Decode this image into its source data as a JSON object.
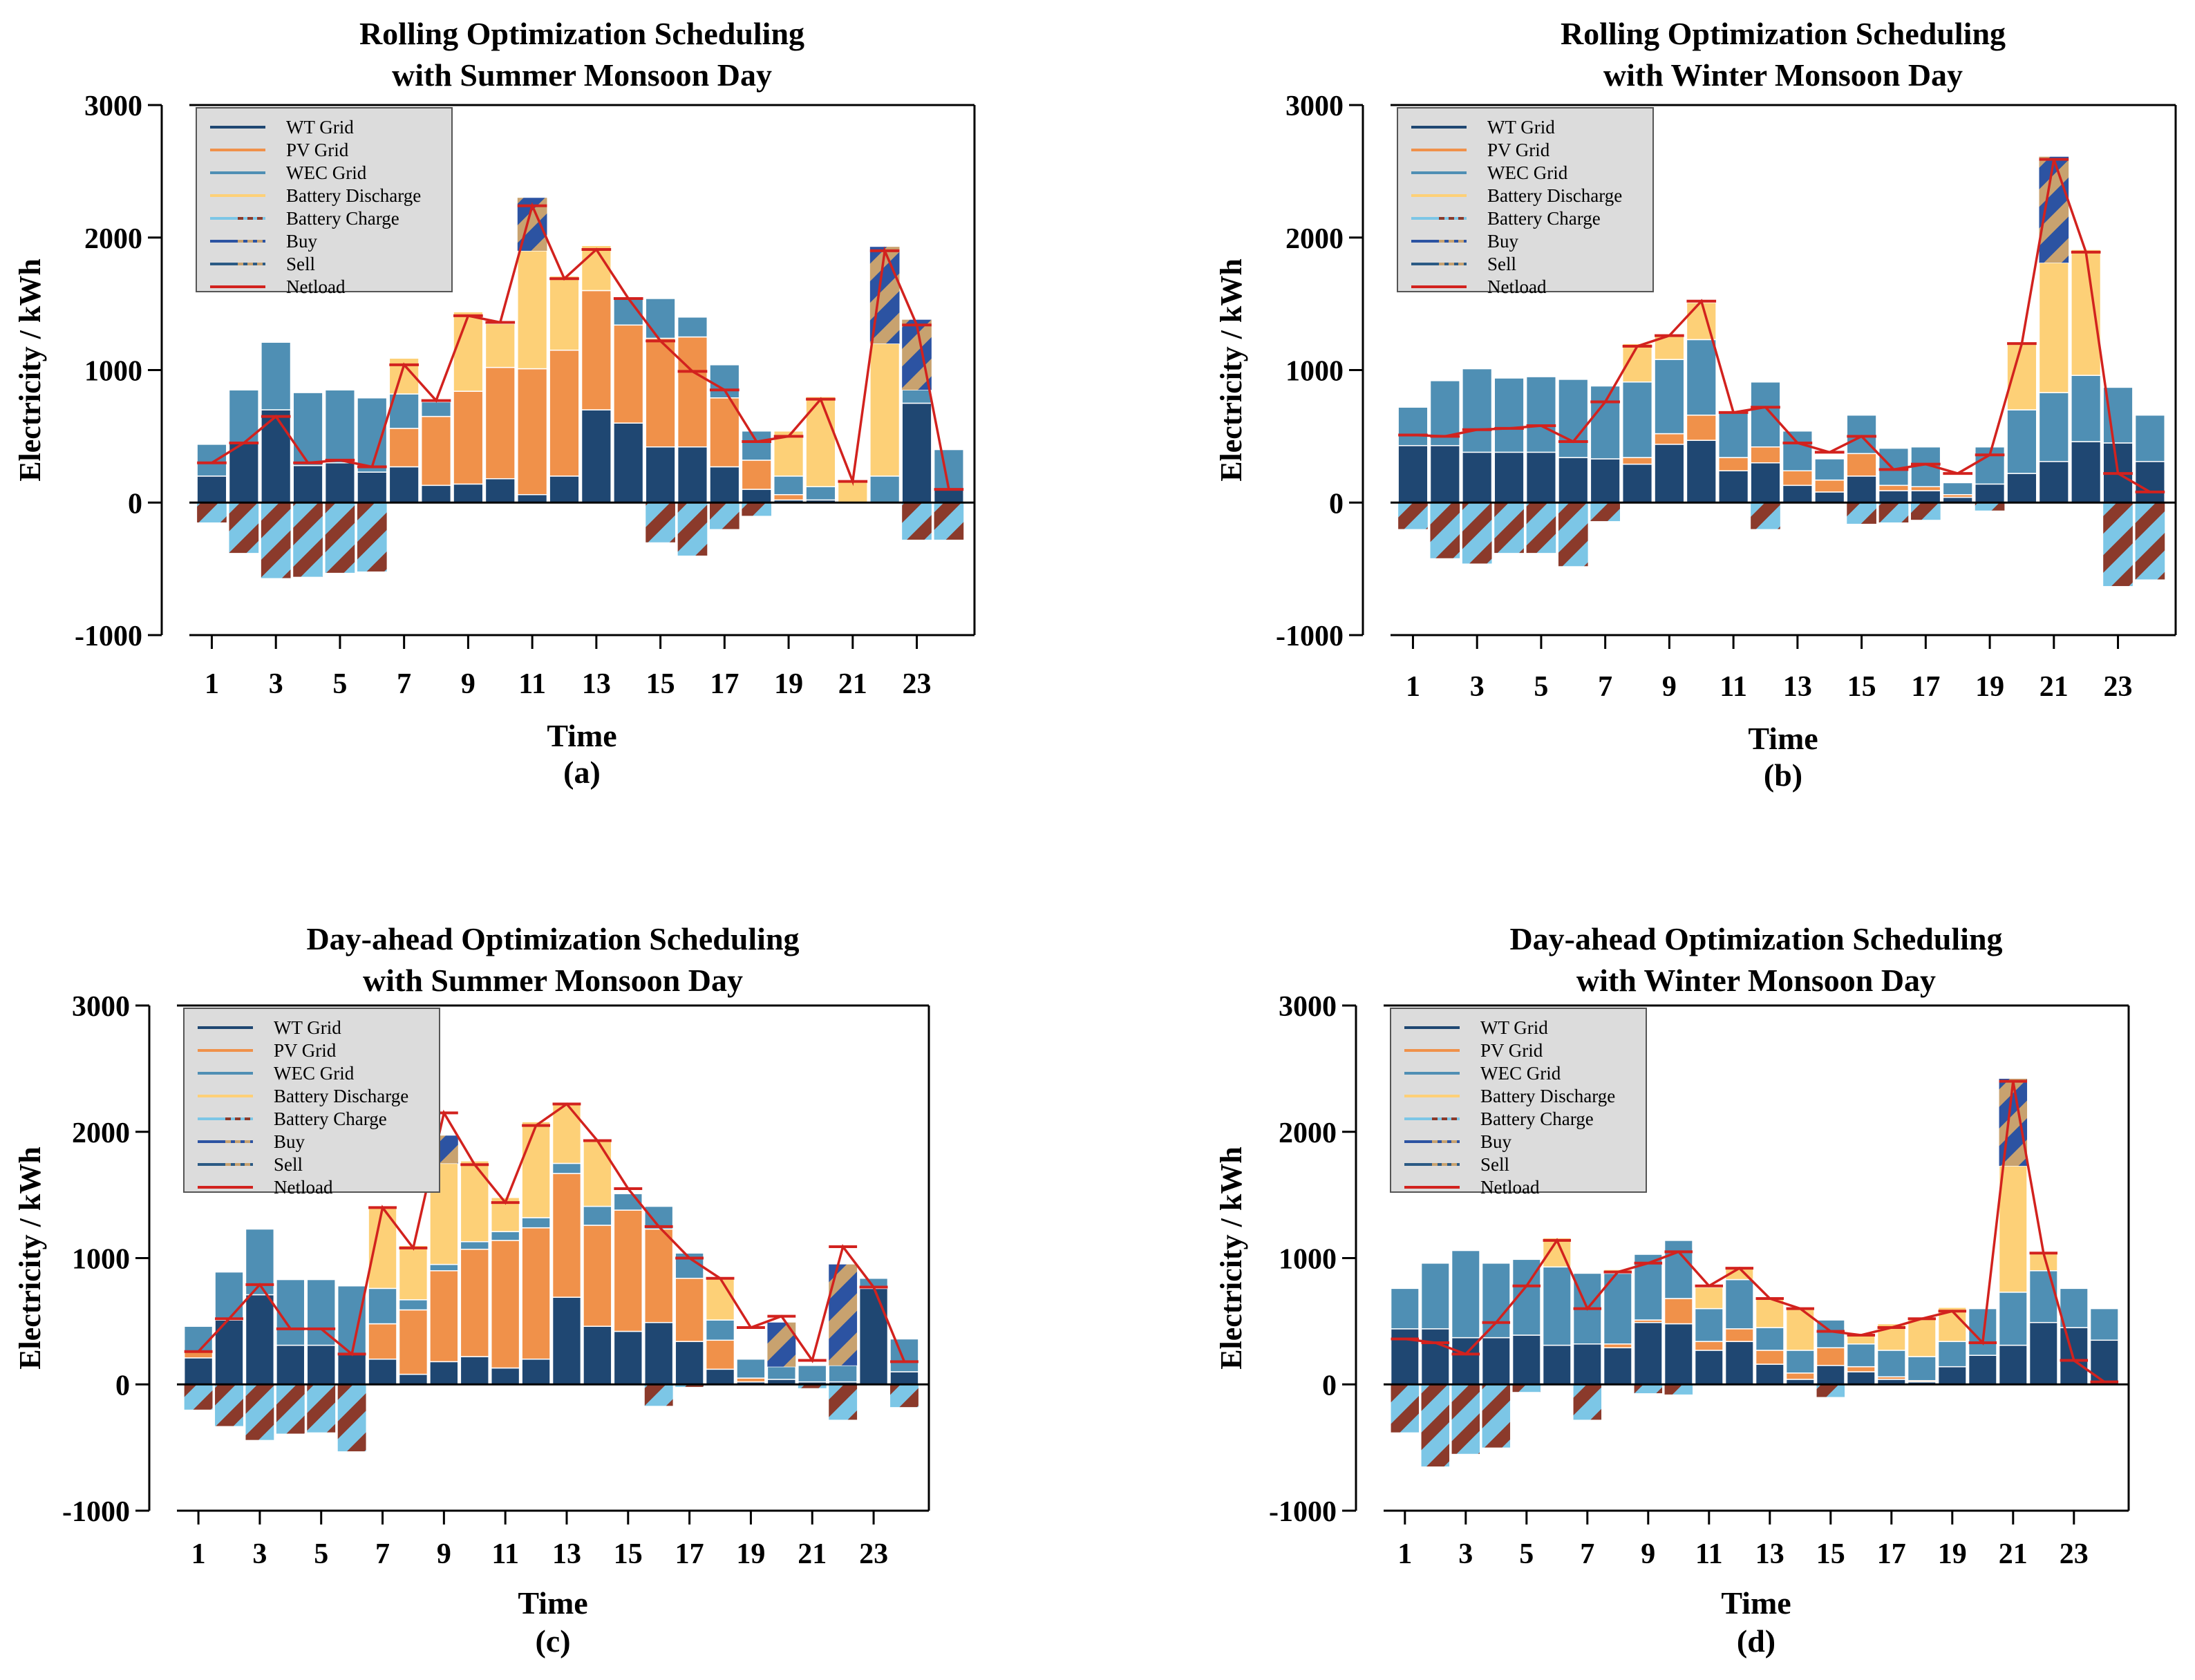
{
  "colors": {
    "wt": "#1f4772",
    "pv": "#f0914a",
    "wec": "#4f8fb4",
    "discharge": "#fdd077",
    "charge": "#7cc6e6",
    "buy": "#2c53a2",
    "sell": "#2b5a84",
    "netload": "#d2221e",
    "stripe": "#c8a26f",
    "sellStripe": "#8b3a2b"
  },
  "legend_labels": [
    "WT Grid",
    "PV Grid",
    "WEC Grid",
    "Battery Discharge",
    "Battery Charge",
    "Buy",
    "Sell",
    "Netload"
  ],
  "chart_data": [
    {
      "id": "a",
      "type": "bar",
      "stacked": true,
      "title": [
        "Rolling Optimization Scheduling",
        "with Summer Monsoon Day"
      ],
      "xlabel": "Time",
      "ylabel": "Electricity / kWh",
      "caption": "(a)",
      "ylim": [
        -1000,
        3000
      ],
      "yticks": [
        3000,
        2000,
        1000,
        0,
        -1000
      ],
      "x": [
        1,
        2,
        3,
        4,
        5,
        6,
        7,
        8,
        9,
        10,
        11,
        12,
        13,
        14,
        15,
        16,
        17,
        18,
        19,
        20,
        21,
        22,
        23,
        24
      ],
      "xticks": [
        1,
        3,
        5,
        7,
        9,
        11,
        13,
        15,
        17,
        19,
        21,
        23
      ],
      "legend_position": "top-left",
      "series": [
        {
          "name": "WT Grid",
          "key": "wt",
          "values": [
            200,
            450,
            700,
            280,
            300,
            230,
            270,
            130,
            140,
            180,
            60,
            200,
            700,
            600,
            420,
            420,
            270,
            100,
            20,
            20,
            0,
            0,
            750,
            100
          ]
        },
        {
          "name": "PV Grid",
          "key": "pv",
          "values": [
            0,
            0,
            0,
            0,
            0,
            0,
            290,
            520,
            700,
            840,
            950,
            950,
            900,
            740,
            820,
            830,
            520,
            220,
            40,
            0,
            0,
            0,
            0,
            0
          ]
        },
        {
          "name": "WEC Grid",
          "key": "wec",
          "values": [
            240,
            400,
            510,
            550,
            550,
            560,
            260,
            110,
            0,
            0,
            0,
            0,
            0,
            210,
            300,
            150,
            250,
            220,
            140,
            100,
            0,
            200,
            100,
            300
          ]
        },
        {
          "name": "Battery Discharge",
          "key": "discharge",
          "values": [
            0,
            0,
            0,
            0,
            0,
            0,
            270,
            0,
            600,
            330,
            890,
            560,
            340,
            0,
            0,
            0,
            0,
            0,
            340,
            680,
            170,
            1000,
            0,
            0
          ]
        },
        {
          "name": "Battery Charge",
          "key": "charge",
          "values": [
            -150,
            -380,
            -570,
            -560,
            -530,
            -520,
            0,
            0,
            0,
            0,
            0,
            0,
            0,
            0,
            -300,
            -400,
            -200,
            -100,
            0,
            0,
            0,
            0,
            -280,
            -280
          ]
        },
        {
          "name": "Buy",
          "key": "buy",
          "values": [
            0,
            0,
            0,
            0,
            0,
            0,
            0,
            0,
            0,
            0,
            400,
            0,
            0,
            0,
            0,
            0,
            0,
            0,
            0,
            0,
            0,
            730,
            530,
            0
          ]
        },
        {
          "name": "Sell",
          "key": "sell",
          "values": [
            0,
            0,
            0,
            0,
            0,
            0,
            0,
            0,
            0,
            0,
            0,
            0,
            0,
            0,
            0,
            0,
            0,
            0,
            0,
            0,
            0,
            0,
            0,
            0
          ]
        }
      ],
      "netload": [
        300,
        450,
        650,
        300,
        320,
        270,
        1040,
        770,
        1410,
        1360,
        2240,
        1690,
        1910,
        1540,
        1220,
        990,
        850,
        460,
        500,
        780,
        160,
        1900,
        1340,
        100
      ]
    },
    {
      "id": "b",
      "type": "bar",
      "stacked": true,
      "title": [
        "Rolling Optimization Scheduling",
        "with Winter Monsoon Day"
      ],
      "xlabel": "Time",
      "ylabel": "Electricity / kWh",
      "caption": "(b)",
      "ylim": [
        -1000,
        3000
      ],
      "yticks": [
        3000,
        2000,
        1000,
        0,
        -1000
      ],
      "x": [
        1,
        2,
        3,
        4,
        5,
        6,
        7,
        8,
        9,
        10,
        11,
        12,
        13,
        14,
        15,
        16,
        17,
        18,
        19,
        20,
        21,
        22,
        23,
        24
      ],
      "xticks": [
        1,
        3,
        5,
        7,
        9,
        11,
        13,
        15,
        17,
        19,
        21,
        23
      ],
      "legend_position": "top-left",
      "series": [
        {
          "name": "WT Grid",
          "key": "wt",
          "values": [
            430,
            430,
            380,
            380,
            380,
            340,
            330,
            290,
            440,
            470,
            240,
            300,
            130,
            80,
            200,
            90,
            90,
            40,
            140,
            220,
            310,
            460,
            450,
            310
          ]
        },
        {
          "name": "PV Grid",
          "key": "pv",
          "values": [
            0,
            0,
            0,
            0,
            0,
            0,
            0,
            50,
            80,
            190,
            100,
            120,
            110,
            90,
            170,
            40,
            30,
            20,
            0,
            0,
            0,
            0,
            0,
            0
          ]
        },
        {
          "name": "WEC Grid",
          "key": "wec",
          "values": [
            290,
            490,
            630,
            560,
            570,
            590,
            550,
            570,
            560,
            570,
            340,
            490,
            300,
            160,
            290,
            280,
            300,
            90,
            280,
            480,
            520,
            500,
            420,
            350
          ]
        },
        {
          "name": "Battery Discharge",
          "key": "discharge",
          "values": [
            0,
            0,
            0,
            0,
            0,
            0,
            0,
            290,
            190,
            280,
            0,
            0,
            0,
            0,
            0,
            0,
            0,
            0,
            0,
            500,
            980,
            950,
            0,
            0
          ]
        },
        {
          "name": "Battery Charge",
          "key": "charge",
          "values": [
            -200,
            -420,
            -460,
            -380,
            -380,
            -480,
            -140,
            0,
            0,
            0,
            0,
            -200,
            0,
            0,
            -160,
            -150,
            -130,
            0,
            -60,
            0,
            0,
            0,
            -630,
            -580
          ]
        },
        {
          "name": "Buy",
          "key": "buy",
          "values": [
            0,
            0,
            0,
            0,
            0,
            0,
            0,
            0,
            0,
            0,
            0,
            0,
            0,
            0,
            0,
            0,
            0,
            0,
            0,
            0,
            800,
            0,
            0,
            0
          ]
        },
        {
          "name": "Sell",
          "key": "sell",
          "values": [
            0,
            0,
            0,
            0,
            0,
            0,
            0,
            0,
            0,
            0,
            0,
            0,
            0,
            0,
            0,
            0,
            0,
            0,
            0,
            0,
            0,
            0,
            0,
            0
          ]
        }
      ],
      "netload": [
        510,
        500,
        550,
        560,
        580,
        460,
        760,
        1180,
        1260,
        1520,
        680,
        720,
        450,
        380,
        500,
        250,
        290,
        220,
        360,
        1200,
        2590,
        1890,
        220,
        80
      ]
    },
    {
      "id": "c",
      "type": "bar",
      "stacked": true,
      "title": [
        "Day-ahead Optimization Scheduling",
        "with Summer Monsoon Day"
      ],
      "xlabel": "Time",
      "ylabel": "Electricity / kWh",
      "caption": "(c)",
      "ylim": [
        -1000,
        3000
      ],
      "yticks": [
        3000,
        2000,
        1000,
        0,
        -1000
      ],
      "x": [
        1,
        2,
        3,
        4,
        5,
        6,
        7,
        8,
        9,
        10,
        11,
        12,
        13,
        14,
        15,
        16,
        17,
        18,
        19,
        20,
        21,
        22,
        23,
        24
      ],
      "xticks": [
        1,
        3,
        5,
        7,
        9,
        11,
        13,
        15,
        17,
        19,
        21,
        23
      ],
      "legend_position": "top-left",
      "series": [
        {
          "name": "WT Grid",
          "key": "wt",
          "values": [
            210,
            510,
            710,
            310,
            310,
            240,
            200,
            80,
            180,
            220,
            130,
            200,
            690,
            460,
            420,
            490,
            340,
            120,
            20,
            40,
            20,
            20,
            760,
            100
          ]
        },
        {
          "name": "PV Grid",
          "key": "pv",
          "values": [
            50,
            0,
            0,
            0,
            0,
            0,
            280,
            510,
            720,
            850,
            1010,
            1040,
            980,
            800,
            960,
            740,
            500,
            230,
            30,
            0,
            0,
            0,
            0,
            0
          ]
        },
        {
          "name": "WEC Grid",
          "key": "wec",
          "values": [
            200,
            380,
            520,
            520,
            520,
            540,
            280,
            80,
            50,
            60,
            70,
            80,
            80,
            150,
            130,
            180,
            200,
            160,
            150,
            100,
            130,
            130,
            80,
            260
          ]
        },
        {
          "name": "Battery Discharge",
          "key": "discharge",
          "values": [
            0,
            0,
            0,
            0,
            0,
            0,
            650,
            430,
            800,
            640,
            270,
            760,
            470,
            530,
            0,
            0,
            0,
            340,
            0,
            0,
            0,
            0,
            0,
            0
          ]
        },
        {
          "name": "Battery Charge",
          "key": "charge",
          "values": [
            -200,
            -330,
            -440,
            -390,
            -380,
            -530,
            0,
            0,
            0,
            0,
            0,
            0,
            0,
            0,
            0,
            -170,
            -20,
            0,
            0,
            0,
            -30,
            -280,
            0,
            -180
          ]
        },
        {
          "name": "Buy",
          "key": "buy",
          "values": [
            0,
            0,
            0,
            0,
            0,
            0,
            0,
            0,
            220,
            0,
            0,
            0,
            0,
            0,
            0,
            0,
            0,
            0,
            0,
            350,
            0,
            800,
            0,
            0
          ]
        },
        {
          "name": "Sell",
          "key": "sell",
          "values": [
            0,
            0,
            0,
            0,
            0,
            0,
            0,
            0,
            0,
            0,
            0,
            0,
            0,
            0,
            0,
            0,
            0,
            0,
            0,
            0,
            0,
            0,
            0,
            0
          ]
        }
      ],
      "netload": [
        260,
        520,
        790,
        440,
        440,
        240,
        1400,
        1080,
        2150,
        1740,
        1440,
        2050,
        2220,
        1930,
        1550,
        1250,
        1000,
        840,
        450,
        540,
        190,
        1090,
        770,
        180
      ]
    },
    {
      "id": "d",
      "type": "bar",
      "stacked": true,
      "title": [
        "Day-ahead Optimization Scheduling",
        "with Winter Monsoon Day"
      ],
      "xlabel": "Time",
      "ylabel": "Electricity / kWh",
      "caption": "(d)",
      "ylim": [
        -1000,
        3000
      ],
      "yticks": [
        3000,
        2000,
        1000,
        0,
        -1000
      ],
      "x": [
        1,
        2,
        3,
        4,
        5,
        6,
        7,
        8,
        9,
        10,
        11,
        12,
        13,
        14,
        15,
        16,
        17,
        18,
        19,
        20,
        21,
        22,
        23,
        24
      ],
      "xticks": [
        1,
        3,
        5,
        7,
        9,
        11,
        13,
        15,
        17,
        19,
        21,
        23
      ],
      "legend_position": "top-left",
      "series": [
        {
          "name": "WT Grid",
          "key": "wt",
          "values": [
            440,
            440,
            370,
            370,
            390,
            310,
            320,
            290,
            490,
            480,
            270,
            340,
            160,
            40,
            150,
            100,
            40,
            20,
            140,
            230,
            310,
            490,
            450,
            350
          ]
        },
        {
          "name": "PV Grid",
          "key": "pv",
          "values": [
            0,
            0,
            0,
            0,
            0,
            0,
            0,
            30,
            20,
            200,
            70,
            100,
            110,
            50,
            140,
            40,
            20,
            10,
            0,
            0,
            0,
            0,
            0,
            0
          ]
        },
        {
          "name": "WEC Grid",
          "key": "wec",
          "values": [
            320,
            520,
            690,
            590,
            600,
            620,
            560,
            560,
            520,
            460,
            260,
            390,
            180,
            180,
            220,
            180,
            210,
            190,
            200,
            370,
            420,
            410,
            310,
            250
          ]
        },
        {
          "name": "Battery Discharge",
          "key": "discharge",
          "values": [
            0,
            0,
            0,
            0,
            0,
            230,
            0,
            30,
            0,
            0,
            170,
            100,
            230,
            340,
            0,
            80,
            210,
            300,
            270,
            0,
            1000,
            150,
            0,
            0
          ]
        },
        {
          "name": "Battery Charge",
          "key": "charge",
          "values": [
            -380,
            -650,
            -550,
            -500,
            -60,
            0,
            -280,
            0,
            -70,
            -80,
            0,
            0,
            0,
            0,
            -100,
            0,
            0,
            0,
            0,
            0,
            0,
            0,
            0,
            0
          ]
        },
        {
          "name": "Buy",
          "key": "buy",
          "values": [
            0,
            0,
            0,
            0,
            0,
            0,
            0,
            0,
            0,
            0,
            0,
            0,
            0,
            0,
            0,
            0,
            0,
            0,
            0,
            0,
            690,
            0,
            0,
            0
          ]
        },
        {
          "name": "Sell",
          "key": "sell",
          "values": [
            0,
            0,
            0,
            0,
            0,
            0,
            0,
            0,
            0,
            0,
            0,
            0,
            0,
            0,
            0,
            0,
            0,
            0,
            0,
            0,
            0,
            0,
            0,
            0
          ]
        }
      ],
      "netload": [
        360,
        330,
        240,
        490,
        780,
        1140,
        600,
        890,
        960,
        1050,
        780,
        920,
        680,
        600,
        420,
        390,
        450,
        520,
        580,
        330,
        2400,
        1040,
        190,
        20
      ]
    }
  ]
}
